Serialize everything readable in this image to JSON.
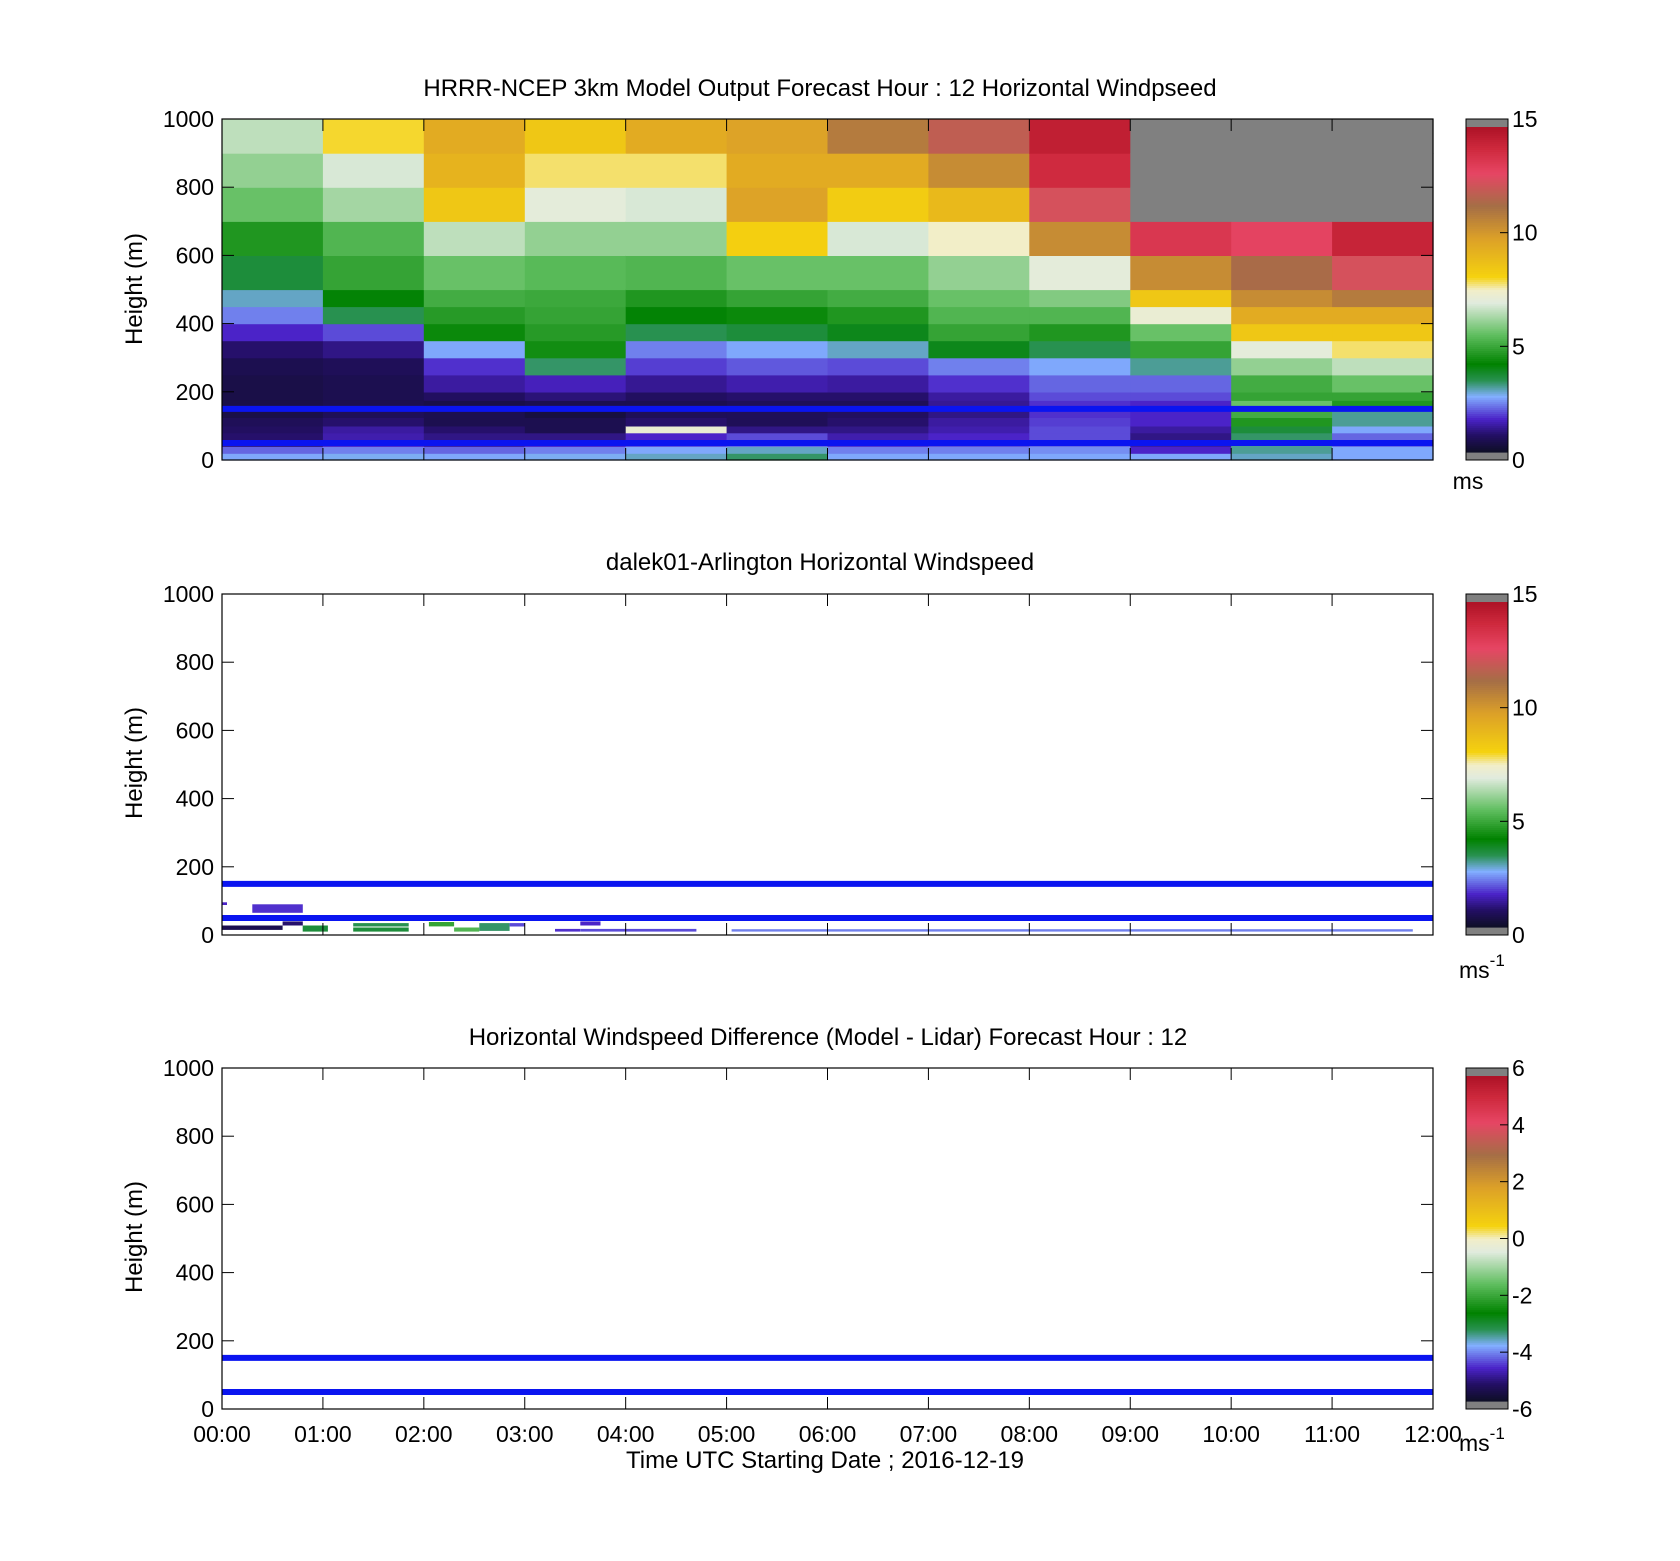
{
  "colors": {
    "overlay_line": "#0a14f0",
    "axes": "#000000",
    "missing": "#808080"
  },
  "chart_data": [
    {
      "type": "heatmap",
      "title": "HRRR-NCEP 3km Model Output   Forecast Hour : 12 Horizontal Windpseed",
      "ylabel": "Height (m)",
      "xlabel": "",
      "xlim": [
        0,
        12
      ],
      "ylim": [
        0,
        1000
      ],
      "yticks": [
        "0",
        "200",
        "400",
        "600",
        "800",
        "1000"
      ],
      "xticks": [
        "",
        "",
        "",
        "",
        "",
        "",
        "",
        "",
        "",
        "",
        "",
        "",
        ""
      ],
      "colorbar": {
        "min": 0,
        "max": 15,
        "ticks": [
          "0",
          "5",
          "10",
          "15"
        ],
        "unit": "ms",
        "unit_sup": "",
        "diverging": false
      },
      "overlay_lines_height": [
        150,
        50
      ],
      "levels": [
        0,
        20,
        40,
        60,
        80,
        100,
        125,
        150,
        175,
        200,
        250,
        300,
        350,
        400,
        450,
        500,
        600,
        700,
        800,
        900,
        1000
      ],
      "columns": [
        [
          2.5,
          2.0,
          1.0,
          0.8,
          0.7,
          0.6,
          0.4,
          0.4,
          0.4,
          0.4,
          0.5,
          0.8,
          1.5,
          2.2,
          2.8,
          3.5,
          4.5,
          5.5,
          6.0,
          6.5
        ],
        [
          2.6,
          2.2,
          1.5,
          1.3,
          1.2,
          0.8,
          0.6,
          0.5,
          0.5,
          0.5,
          0.6,
          1.0,
          1.8,
          3.3,
          4.0,
          4.8,
          5.2,
          6.2,
          6.8,
          8.0
        ],
        [
          2.5,
          2.0,
          1.2,
          1.0,
          0.8,
          0.5,
          0.5,
          0.4,
          0.7,
          1.2,
          1.6,
          2.5,
          4.2,
          4.6,
          5.0,
          5.5,
          6.5,
          8.5,
          9.2,
          9.5
        ],
        [
          2.6,
          2.2,
          1.5,
          1.0,
          0.5,
          0.5,
          0.3,
          0.5,
          0.9,
          1.4,
          3.2,
          4.3,
          4.6,
          4.8,
          4.9,
          5.3,
          6.0,
          7.0,
          7.8,
          8.5
        ],
        [
          2.8,
          2.5,
          1.8,
          1.5,
          7.2,
          0.8,
          0.6,
          0.5,
          0.7,
          1.1,
          1.7,
          2.2,
          3.3,
          4.0,
          4.5,
          5.2,
          6.0,
          6.8,
          7.8,
          9.5
        ],
        [
          3.2,
          2.8,
          2.0,
          1.8,
          1.0,
          0.6,
          0.6,
          0.6,
          0.8,
          1.3,
          1.9,
          2.5,
          3.5,
          4.2,
          4.8,
          5.5,
          8.2,
          9.8,
          9.5,
          9.8
        ],
        [
          2.5,
          2.2,
          1.6,
          1.3,
          1.0,
          0.8,
          0.7,
          0.6,
          0.8,
          1.2,
          1.8,
          2.8,
          3.8,
          4.5,
          5.0,
          5.5,
          6.8,
          8.3,
          9.5,
          11.0
        ],
        [
          2.5,
          2.2,
          1.8,
          1.5,
          1.3,
          1.2,
          1.0,
          1.1,
          1.2,
          1.6,
          2.2,
          3.8,
          4.8,
          5.2,
          5.5,
          6.0,
          7.5,
          9.0,
          10.5,
          12.0
        ],
        [
          2.5,
          2.3,
          2.0,
          1.8,
          1.8,
          1.7,
          1.6,
          1.6,
          1.8,
          2.0,
          2.5,
          3.3,
          4.5,
          5.2,
          5.8,
          7.0,
          10.5,
          12.5,
          14.0,
          14.5
        ],
        [
          2.5,
          1.5,
          1.2,
          1.0,
          1.2,
          1.5,
          1.5,
          1.5,
          1.8,
          2.0,
          3.0,
          4.8,
          5.5,
          7.2,
          8.5,
          10.5,
          13.5,
          null,
          null,
          null
        ],
        [
          2.8,
          3.0,
          3.0,
          3.2,
          3.5,
          4.5,
          5.0,
          5.5,
          4.8,
          5.0,
          6.0,
          7.0,
          8.5,
          9.5,
          10.5,
          11.5,
          13.0,
          null,
          null,
          null
        ],
        [
          2.5,
          2.5,
          2.0,
          2.0,
          2.5,
          3.0,
          3.0,
          4.5,
          4.8,
          5.5,
          6.5,
          7.8,
          8.5,
          9.5,
          11.0,
          12.5,
          14.3,
          null,
          null,
          null
        ]
      ]
    },
    {
      "type": "heatmap",
      "title": "dalek01-Arlington  Horizontal Windspeed",
      "ylabel": "Height (m)",
      "xlabel": "",
      "xlim": [
        0,
        12
      ],
      "ylim": [
        0,
        1000
      ],
      "yticks": [
        "0",
        "200",
        "400",
        "600",
        "800",
        "1000"
      ],
      "xticks": [
        "",
        "",
        "",
        "",
        "",
        "",
        "",
        "",
        "",
        "",
        "",
        "",
        ""
      ],
      "colorbar": {
        "min": 0,
        "max": 15,
        "ticks": [
          "0",
          "5",
          "10",
          "15"
        ],
        "unit": "ms",
        "unit_sup": "-1",
        "diverging": false
      },
      "overlay_lines_height": [
        150,
        50
      ],
      "segments": [
        {
          "x0": 0.0,
          "x1": 0.05,
          "y0": 88,
          "y1": 96,
          "v": 1.5
        },
        {
          "x0": 0.3,
          "x1": 0.8,
          "y0": 65,
          "y1": 90,
          "v": 1.6
        },
        {
          "x0": 0.0,
          "x1": 0.6,
          "y0": 15,
          "y1": 28,
          "v": 0.5
        },
        {
          "x0": 0.6,
          "x1": 0.8,
          "y0": 28,
          "y1": 40,
          "v": 0.8
        },
        {
          "x0": 0.8,
          "x1": 1.05,
          "y0": 10,
          "y1": 28,
          "v": 3.5
        },
        {
          "x0": 1.3,
          "x1": 1.85,
          "y0": 10,
          "y1": 22,
          "v": 3.5
        },
        {
          "x0": 1.3,
          "x1": 1.85,
          "y0": 25,
          "y1": 35,
          "v": 3.3
        },
        {
          "x0": 2.05,
          "x1": 2.3,
          "y0": 25,
          "y1": 38,
          "v": 4.8
        },
        {
          "x0": 2.3,
          "x1": 2.55,
          "y0": 10,
          "y1": 22,
          "v": 5.2
        },
        {
          "x0": 2.55,
          "x1": 2.85,
          "y0": 12,
          "y1": 35,
          "v": 3.2
        },
        {
          "x0": 2.85,
          "x1": 3.0,
          "y0": 25,
          "y1": 35,
          "v": 1.8
        },
        {
          "x0": 3.3,
          "x1": 3.55,
          "y0": 10,
          "y1": 18,
          "v": 1.6
        },
        {
          "x0": 3.55,
          "x1": 3.75,
          "y0": 28,
          "y1": 40,
          "v": 1.5
        },
        {
          "x0": 3.55,
          "x1": 4.7,
          "y0": 10,
          "y1": 18,
          "v": 1.8
        },
        {
          "x0": 5.05,
          "x1": 11.8,
          "y0": 10,
          "y1": 17,
          "v": 2.2
        }
      ]
    },
    {
      "type": "heatmap",
      "title": "Horizontal Windspeed Difference (Model - Lidar) Forecast Hour : 12",
      "ylabel": "Height (m)",
      "xlabel": "Time UTC  Starting Date ; 2016-12-19",
      "xlim": [
        0,
        12
      ],
      "ylim": [
        0,
        1000
      ],
      "yticks": [
        "0",
        "200",
        "400",
        "600",
        "800",
        "1000"
      ],
      "xticks": [
        "00:00",
        "01:00",
        "02:00",
        "03:00",
        "04:00",
        "05:00",
        "06:00",
        "07:00",
        "08:00",
        "09:00",
        "10:00",
        "11:00",
        "12:00"
      ],
      "colorbar": {
        "min": -6,
        "max": 6,
        "ticks": [
          "-6",
          "-4",
          "-2",
          "0",
          "2",
          "4",
          "6"
        ],
        "unit": "ms",
        "unit_sup": "-1",
        "diverging": true
      },
      "overlay_lines_height": [
        150,
        50
      ],
      "segments": []
    }
  ]
}
